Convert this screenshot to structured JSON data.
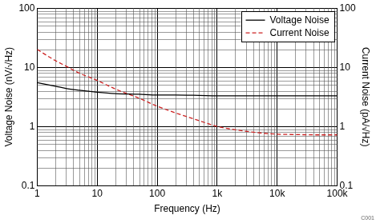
{
  "chart_data": {
    "type": "line",
    "log": true,
    "grid": true,
    "legend": "upper right",
    "x_label": "Frequency (Hz)",
    "y_label": "Voltage Noise (nV/√Hz)",
    "y2_label": "Current Noise (pA/√Hz)",
    "annotations": [
      "C001"
    ],
    "x": [
      1,
      2,
      3,
      5,
      10,
      20,
      50,
      100,
      200,
      500,
      1000,
      2000,
      5000,
      10000,
      20000,
      50000,
      100000
    ],
    "xlim": [
      1,
      100000
    ],
    "xticks": [
      1,
      10,
      100,
      {
        "value": 1000,
        "label": "1k"
      },
      {
        "value": 10000,
        "label": "10k"
      },
      {
        "value": 100000,
        "label": "100k"
      }
    ],
    "ylim": [
      0.1,
      100
    ],
    "yticks": [
      0.1,
      1,
      10,
      100
    ],
    "y2lim": [
      0.1,
      100
    ],
    "y2ticks": [
      0.1,
      1,
      10,
      100
    ],
    "series": [
      {
        "name": "Voltage Noise",
        "color": "#000000",
        "line_style": "solid",
        "values": [
          5.5,
          4.8,
          4.4,
          4.1,
          3.8,
          3.6,
          3.5,
          3.4,
          3.4,
          3.35,
          3.3,
          3.3,
          3.3,
          3.3,
          3.3,
          3.3,
          3.3
        ]
      },
      {
        "name": "Current Noise",
        "color": "#cc2222",
        "line_style": "dashed",
        "axis": "y2",
        "values": [
          20,
          13,
          10.5,
          8,
          6,
          4.3,
          3.0,
          2.2,
          1.7,
          1.25,
          1.0,
          0.88,
          0.78,
          0.74,
          0.73,
          0.72,
          0.72
        ]
      }
    ]
  }
}
